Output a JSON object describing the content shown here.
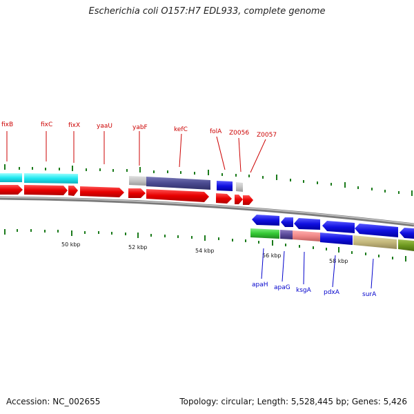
{
  "title": "Escherichia coli O157:H7 EDL933, complete genome",
  "footer": {
    "accession": "Accession: NC_002655",
    "summary": "Topology: circular; Length: 5,528,445 bp; Genes: 5,426"
  },
  "colors": {
    "forward_label": "#cc0000",
    "reverse_label": "#0000cc",
    "tick": "#1a7a1a",
    "backbone": "#808080"
  },
  "scale_labels": [
    "50 kbp",
    "52 kbp",
    "54 kbp",
    "56 kbp",
    "58 kbp"
  ],
  "forward_genes": [
    {
      "label": "fixB"
    },
    {
      "label": "fixC"
    },
    {
      "label": "fixX"
    },
    {
      "label": "yaaU"
    },
    {
      "label": "yabF"
    },
    {
      "label": "kefC"
    },
    {
      "label": "folA"
    },
    {
      "label": "Z0056"
    },
    {
      "label": "Z0057"
    }
  ],
  "reverse_genes": [
    {
      "label": "apaH"
    },
    {
      "label": "apaG"
    },
    {
      "label": "ksgA"
    },
    {
      "label": "pdxA"
    },
    {
      "label": "surA"
    }
  ]
}
